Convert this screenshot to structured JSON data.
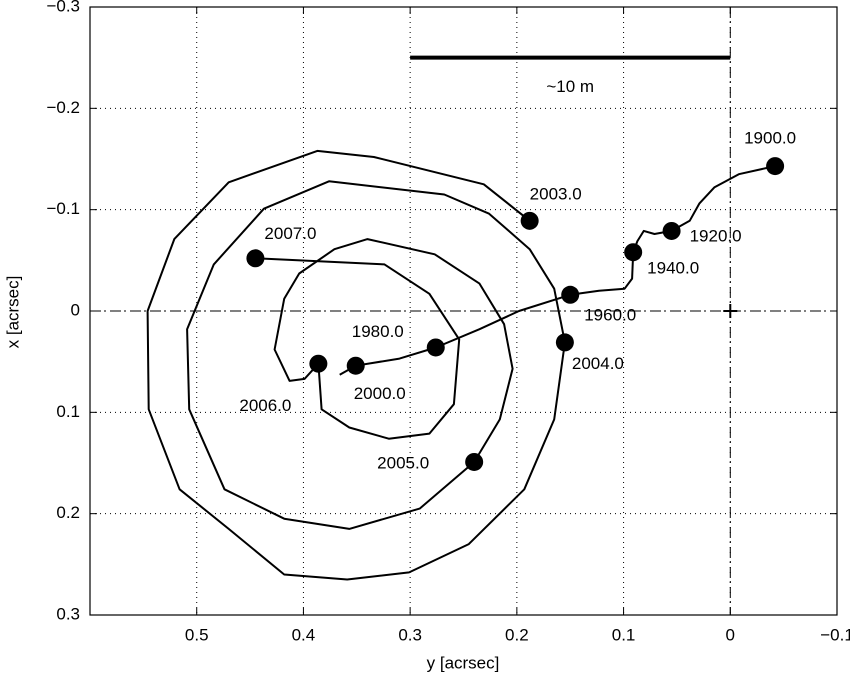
{
  "chart_data": {
    "type": "line",
    "xlabel": "y [acrsec]",
    "ylabel": "x [acrsec]",
    "xlim": [
      0.6,
      -0.1
    ],
    "ylim": [
      -0.3,
      0.3
    ],
    "xticks": [
      0.5,
      0.4,
      0.3,
      0.2,
      0.1,
      0,
      {
        "value": -0.1,
        "label": "−0.1"
      }
    ],
    "yticks": [
      {
        "value": -0.3,
        "label": "−0.3"
      },
      {
        "value": -0.2,
        "label": "−0.2"
      },
      {
        "value": -0.1,
        "label": "−0.1"
      },
      0,
      0.1,
      0.2,
      0.3
    ],
    "grid": true,
    "zero_lines": true,
    "color": "#000000",
    "x": [
      -0.042,
      -0.008,
      0.015,
      0.029,
      0.038,
      0.055,
      0.071,
      0.081,
      0.087,
      0.091,
      0.092,
      0.099,
      0.123,
      0.15,
      0.198,
      0.235,
      0.276,
      0.31,
      0.351,
      0.366,
      null,
      0.188,
      0.231,
      0.334,
      0.387,
      0.47,
      0.521,
      0.546,
      0.545,
      0.516,
      0.47,
      0.418,
      0.359,
      0.301,
      0.245,
      0.193,
      0.165,
      0.155,
      0.165,
      0.188,
      0.226,
      0.268,
      0.376,
      0.437,
      0.484,
      0.509,
      0.507,
      0.474,
      0.418,
      0.357,
      0.291,
      0.24,
      0.216,
      0.204,
      0.212,
      0.235,
      0.277,
      0.34,
      0.371,
      0.404,
      0.418,
      0.427,
      0.413,
      0.399,
      0.386,
      0.383,
      0.357,
      0.32,
      0.282,
      0.259,
      0.254,
      0.282,
      0.324,
      0.445
    ],
    "values": [
      -0.143,
      -0.135,
      -0.122,
      -0.106,
      -0.089,
      -0.079,
      -0.076,
      -0.079,
      -0.069,
      -0.058,
      -0.032,
      -0.022,
      -0.02,
      -0.016,
      0.0,
      0.018,
      0.036,
      0.047,
      0.054,
      0.063,
      null,
      -0.089,
      -0.125,
      -0.152,
      -0.158,
      -0.127,
      -0.071,
      0.0,
      0.097,
      0.176,
      0.215,
      0.26,
      0.265,
      0.258,
      0.23,
      0.176,
      0.107,
      0.031,
      -0.022,
      -0.061,
      -0.096,
      -0.115,
      -0.128,
      -0.101,
      -0.046,
      0.018,
      0.097,
      0.176,
      0.205,
      0.215,
      0.195,
      0.149,
      0.107,
      0.057,
      0.013,
      -0.027,
      -0.056,
      -0.071,
      -0.061,
      -0.037,
      -0.012,
      0.038,
      0.069,
      0.067,
      0.052,
      0.097,
      0.115,
      0.126,
      0.121,
      0.092,
      0.028,
      -0.017,
      -0.046,
      -0.052
    ],
    "points": {
      "labels": [
        "1900.0",
        "1920.0",
        "1940.0",
        "1960.0",
        "1980.0",
        "2000.0",
        "2003.0",
        "2004.0",
        "2005.0",
        "2006.0",
        "2007.0"
      ],
      "x": [
        -0.042,
        0.055,
        0.091,
        0.15,
        0.276,
        0.351,
        0.188,
        0.155,
        0.24,
        0.386,
        0.445
      ],
      "values": [
        -0.143,
        -0.079,
        -0.058,
        -0.016,
        0.036,
        0.054,
        -0.089,
        0.031,
        0.149,
        0.052,
        -0.052
      ]
    },
    "scale_bar": {
      "x": [
        0.3,
        0
      ],
      "value": -0.25,
      "label": "~10 m"
    }
  }
}
